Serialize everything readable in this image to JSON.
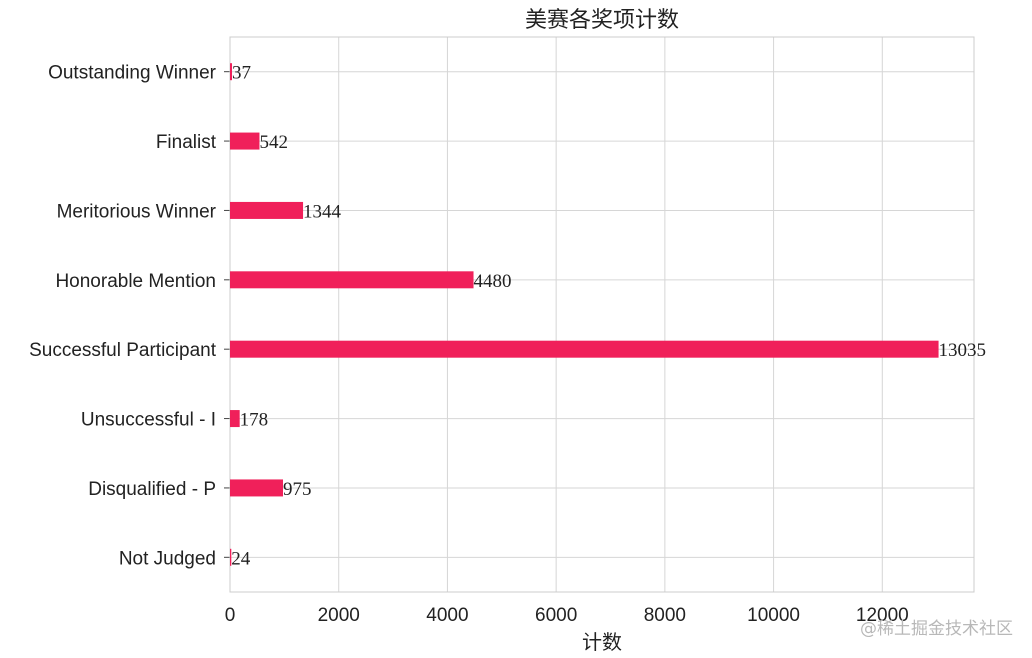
{
  "chart_data": {
    "type": "bar",
    "orientation": "horizontal",
    "title": "美赛各奖项计数",
    "xlabel": "计数",
    "ylabel": "",
    "categories": [
      "Outstanding Winner",
      "Finalist",
      "Meritorious Winner",
      "Honorable Mention",
      "Successful Participant",
      "Unsuccessful - I",
      "Disqualified - P",
      "Not Judged"
    ],
    "values": [
      37,
      542,
      1344,
      4480,
      13035,
      178,
      975,
      24
    ],
    "data_labels": [
      "37",
      "542",
      "1344",
      "4480",
      "13035",
      "178",
      "975",
      "24"
    ],
    "xlim": [
      0,
      13687
    ],
    "xticks": [
      0,
      2000,
      4000,
      6000,
      8000,
      10000,
      12000
    ],
    "xtick_labels": [
      "0",
      "2000",
      "4000",
      "6000",
      "8000",
      "10000",
      "12000"
    ],
    "grid": true,
    "bar_color": "#f0205a"
  },
  "watermark": "@稀土掘金技术社区"
}
